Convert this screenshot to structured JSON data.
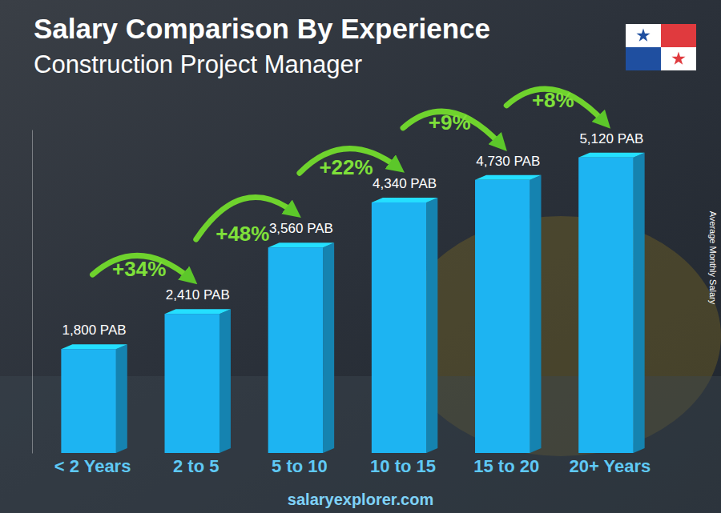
{
  "chart_data": {
    "type": "bar",
    "title": "Salary Comparison By Experience",
    "subtitle": "Construction Project Manager",
    "y_label": "Average Monthly Salary",
    "source": "salaryexplorer.com",
    "categories": [
      "< 2 Years",
      "2 to 5",
      "5 to 10",
      "10 to 15",
      "15 to 20",
      "20+ Years"
    ],
    "values": [
      1800,
      2410,
      3560,
      4340,
      4730,
      5120
    ],
    "value_labels": [
      "1,800 PAB",
      "2,410 PAB",
      "3,560 PAB",
      "4,340 PAB",
      "4,730 PAB",
      "5,120 PAB"
    ],
    "annotations": [
      "+34%",
      "+48%",
      "+22%",
      "+9%",
      "+8%"
    ],
    "color": "#1db4f2",
    "ylim": [
      0,
      5600
    ],
    "yticks": [],
    "grid": false,
    "data_labels": true,
    "tick_labels": "x"
  }
}
